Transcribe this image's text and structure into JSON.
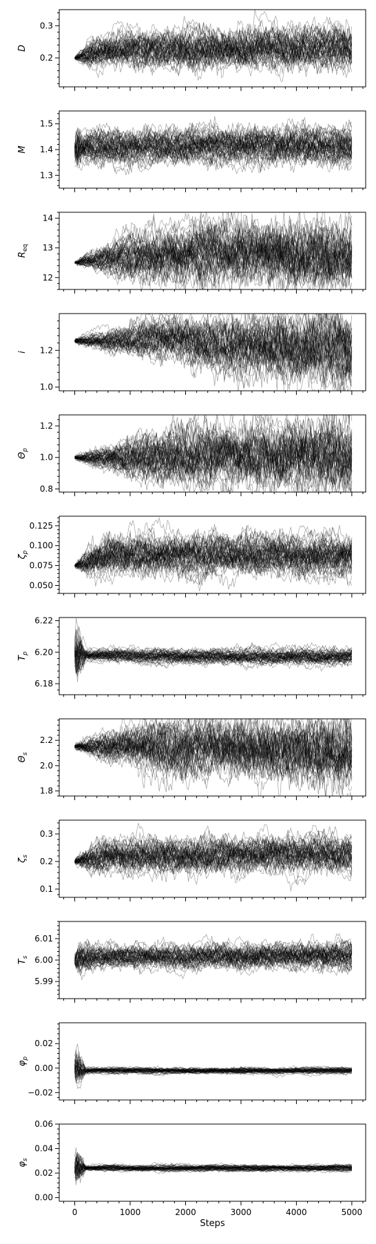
{
  "chart_data": {
    "type": "line",
    "title": "",
    "xlabel": "Steps",
    "xlim": [
      -280,
      5250
    ],
    "xticks": [
      0,
      1000,
      2000,
      3000,
      4000,
      5000
    ],
    "xtick_labels": [
      "0",
      "1000",
      "2000",
      "3000",
      "4000",
      "5000"
    ],
    "walkers": 50,
    "steps": 5000,
    "panels": [
      {
        "ylabel": "D",
        "ylim": [
          0.11,
          0.35
        ],
        "yticks": [
          0.2,
          0.3
        ],
        "ytick_labels": [
          "0.2",
          "0.3"
        ],
        "initial": 0.2,
        "converged_mean": [
          [
            0,
            0.2
          ],
          [
            300,
            0.215
          ],
          [
            1000,
            0.225
          ],
          [
            2000,
            0.23
          ],
          [
            5000,
            0.23
          ]
        ],
        "spread": [
          [
            0,
            0.004
          ],
          [
            300,
            0.02
          ],
          [
            1000,
            0.025
          ],
          [
            2000,
            0.03
          ],
          [
            5000,
            0.03
          ]
        ]
      },
      {
        "ylabel": "M",
        "ylim": [
          1.25,
          1.55
        ],
        "yticks": [
          1.3,
          1.4,
          1.5
        ],
        "ytick_labels": [
          "1.3",
          "1.4",
          "1.5"
        ],
        "initial": 1.4,
        "converged_mean": [
          [
            0,
            1.4
          ],
          [
            300,
            1.41
          ],
          [
            5000,
            1.415
          ]
        ],
        "spread": [
          [
            0,
            0.06
          ],
          [
            150,
            0.03
          ],
          [
            5000,
            0.035
          ]
        ]
      },
      {
        "ylabel": "R_eq",
        "ylim": [
          11.6,
          14.2
        ],
        "yticks": [
          12,
          13,
          14
        ],
        "ytick_labels": [
          "12",
          "13",
          "14"
        ],
        "initial": 12.5,
        "converged_mean": [
          [
            0,
            12.5
          ],
          [
            1000,
            12.7
          ],
          [
            2500,
            12.8
          ],
          [
            5000,
            12.8
          ]
        ],
        "spread": [
          [
            0,
            0.05
          ],
          [
            1000,
            0.35
          ],
          [
            2500,
            0.5
          ],
          [
            5000,
            0.55
          ]
        ]
      },
      {
        "ylabel": "i",
        "ylim": [
          0.98,
          1.4
        ],
        "yticks": [
          1.0,
          1.2
        ],
        "ytick_labels": [
          "1.0",
          "1.2"
        ],
        "initial": 1.25,
        "converged_mean": [
          [
            0,
            1.25
          ],
          [
            1500,
            1.26
          ],
          [
            3500,
            1.22
          ],
          [
            5000,
            1.2
          ]
        ],
        "spread": [
          [
            0,
            0.01
          ],
          [
            1500,
            0.05
          ],
          [
            3500,
            0.08
          ],
          [
            5000,
            0.1
          ]
        ]
      },
      {
        "ylabel": "Θ_p",
        "ylim": [
          0.78,
          1.27
        ],
        "yticks": [
          0.8,
          1.0,
          1.2
        ],
        "ytick_labels": [
          "0.8",
          "1.0",
          "1.2"
        ],
        "initial": 1.0,
        "converged_mean": [
          [
            0,
            1.0
          ],
          [
            1500,
            1.0
          ],
          [
            5000,
            1.02
          ]
        ],
        "spread": [
          [
            0,
            0.01
          ],
          [
            1500,
            0.08
          ],
          [
            5000,
            0.11
          ]
        ]
      },
      {
        "ylabel": "ζ_p",
        "ylim": [
          0.04,
          0.137
        ],
        "yticks": [
          0.05,
          0.075,
          0.1,
          0.125
        ],
        "ytick_labels": [
          "0.050",
          "0.075",
          "0.100",
          "0.125"
        ],
        "initial": 0.075,
        "converged_mean": [
          [
            0,
            0.075
          ],
          [
            300,
            0.082
          ],
          [
            1000,
            0.088
          ],
          [
            5000,
            0.088
          ]
        ],
        "spread": [
          [
            0,
            0.002
          ],
          [
            300,
            0.01
          ],
          [
            1000,
            0.012
          ],
          [
            5000,
            0.012
          ]
        ]
      },
      {
        "ylabel": "T_p",
        "ylim": [
          6.173,
          6.222
        ],
        "yticks": [
          6.18,
          6.2,
          6.22
        ],
        "ytick_labels": [
          "6.18",
          "6.20",
          "6.22"
        ],
        "initial": 6.198,
        "converged_mean": [
          [
            0,
            6.198
          ],
          [
            300,
            6.198
          ],
          [
            5000,
            6.197
          ]
        ],
        "spread": [
          [
            0,
            0.014
          ],
          [
            200,
            0.002
          ],
          [
            5000,
            0.0025
          ]
        ]
      },
      {
        "ylabel": "Θ_s",
        "ylim": [
          1.76,
          2.37
        ],
        "yticks": [
          1.8,
          2.0,
          2.2
        ],
        "ytick_labels": [
          "1.8",
          "2.0",
          "2.2"
        ],
        "initial": 2.15,
        "converged_mean": [
          [
            0,
            2.15
          ],
          [
            1500,
            2.15
          ],
          [
            5000,
            2.1
          ]
        ],
        "spread": [
          [
            0,
            0.02
          ],
          [
            1500,
            0.1
          ],
          [
            5000,
            0.13
          ]
        ]
      },
      {
        "ylabel": "ζ_s",
        "ylim": [
          0.07,
          0.35
        ],
        "yticks": [
          0.1,
          0.2,
          0.3
        ],
        "ytick_labels": [
          "0.1",
          "0.2",
          "0.3"
        ],
        "initial": 0.2,
        "converged_mean": [
          [
            0,
            0.2
          ],
          [
            500,
            0.22
          ],
          [
            5000,
            0.225
          ]
        ],
        "spread": [
          [
            0,
            0.01
          ],
          [
            500,
            0.03
          ],
          [
            5000,
            0.03
          ]
        ]
      },
      {
        "ylabel": "T_s",
        "ylim": [
          5.982,
          6.018
        ],
        "yticks": [
          5.99,
          6.0,
          6.01
        ],
        "ytick_labels": [
          "5.99",
          "6.00",
          "6.01"
        ],
        "initial": 6.0,
        "converged_mean": [
          [
            0,
            6.0
          ],
          [
            500,
            6.0015
          ],
          [
            5000,
            6.0015
          ]
        ],
        "spread": [
          [
            0,
            0.004
          ],
          [
            400,
            0.0025
          ],
          [
            5000,
            0.003
          ]
        ]
      },
      {
        "ylabel": "φ_p",
        "ylim": [
          -0.026,
          0.037
        ],
        "yticks": [
          -0.02,
          0.0,
          0.02
        ],
        "ytick_labels": [
          "−0.02",
          "0.00",
          "0.02"
        ],
        "initial": 0.0,
        "converged_mean": [
          [
            0,
            0.0
          ],
          [
            200,
            -0.002
          ],
          [
            5000,
            -0.002
          ]
        ],
        "spread": [
          [
            0,
            0.012
          ],
          [
            200,
            0.0012
          ],
          [
            5000,
            0.0012
          ]
        ]
      },
      {
        "ylabel": "φ_s",
        "ylim": [
          -0.003,
          0.06
        ],
        "yticks": [
          0.0,
          0.02,
          0.04,
          0.06
        ],
        "ytick_labels": [
          "0.00",
          "0.02",
          "0.04",
          "0.06"
        ],
        "initial": 0.023,
        "converged_mean": [
          [
            0,
            0.023
          ],
          [
            200,
            0.024
          ],
          [
            5000,
            0.024
          ]
        ],
        "spread": [
          [
            0,
            0.012
          ],
          [
            200,
            0.0012
          ],
          [
            5000,
            0.0012
          ]
        ]
      }
    ]
  }
}
